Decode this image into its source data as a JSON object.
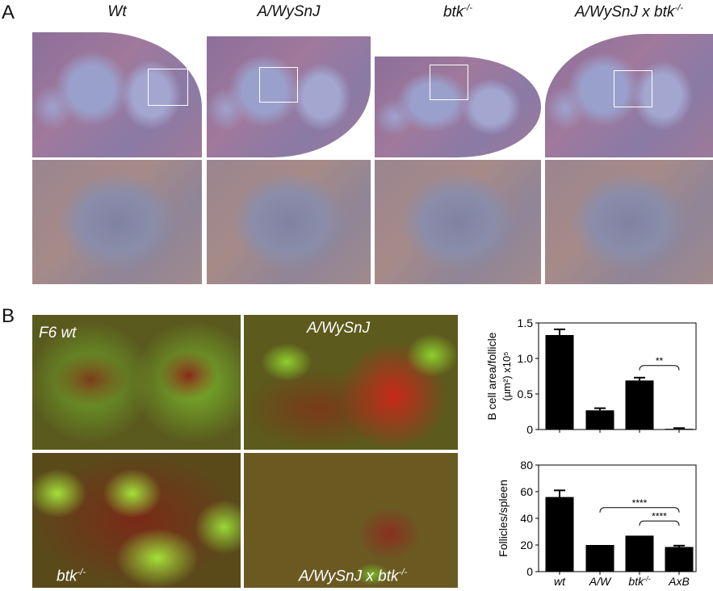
{
  "panel_a": {
    "label": "A",
    "columns": [
      {
        "title": "Wt",
        "sup": ""
      },
      {
        "title": "A/WySnJ",
        "sup": ""
      },
      {
        "title": "btk",
        "sup": "-/-"
      },
      {
        "title": "A/WySnJ x btk",
        "sup": "-/-"
      }
    ]
  },
  "panel_b": {
    "label": "B",
    "images": [
      {
        "title": "F6 wt",
        "sup": ""
      },
      {
        "title": "A/WySnJ",
        "sup": ""
      },
      {
        "title": "btk",
        "sup": "-/-"
      },
      {
        "title": "A/WySnJ x btk",
        "sup": "-/-"
      }
    ]
  },
  "chart_data": [
    {
      "type": "bar",
      "ylabel": "B cell area/follicle",
      "ylabel2": "(µm²) x10⁵",
      "ylim": [
        0,
        1.5
      ],
      "yticks": [
        "0",
        "0.5",
        "1.0",
        "1.5"
      ],
      "ytick_values": [
        0,
        0.5,
        1.0,
        1.5
      ],
      "categories": [
        "wt",
        "A/W",
        "btk-/-",
        "AxB"
      ],
      "values": [
        1.33,
        0.27,
        0.69,
        0.01
      ],
      "error": [
        0.08,
        0.03,
        0.04,
        0.01
      ],
      "annotations": [
        {
          "text": "**",
          "from": "btk-/-",
          "to": "AxB",
          "y": 0.9
        }
      ],
      "color": "#000000"
    },
    {
      "type": "bar",
      "ylabel": "Follicles/spleen",
      "ylim": [
        0,
        80
      ],
      "yticks": [
        "0",
        "20",
        "40",
        "60",
        "80"
      ],
      "ytick_values": [
        0,
        20,
        40,
        60,
        80
      ],
      "categories": [
        "wt",
        "A/W",
        "btk-/-",
        "AxB"
      ],
      "values": [
        56,
        20,
        27,
        18.5
      ],
      "error": [
        5,
        0,
        0,
        1
      ],
      "annotations": [
        {
          "text": "****",
          "from": "A/W",
          "to": "AxB",
          "y": 48
        },
        {
          "text": "****",
          "from": "btk-/-",
          "to": "AxB",
          "y": 38
        }
      ],
      "color": "#000000"
    }
  ],
  "x_labels": [
    {
      "base": "wt",
      "sup": ""
    },
    {
      "base": "A/W",
      "sup": ""
    },
    {
      "base": "btk",
      "sup": "-/-"
    },
    {
      "base": "AxB",
      "sup": ""
    }
  ]
}
